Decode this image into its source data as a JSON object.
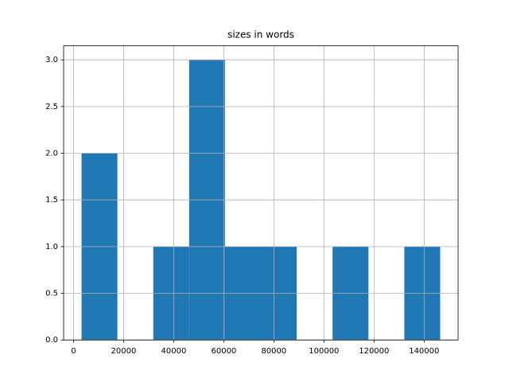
{
  "chart_data": {
    "type": "histogram",
    "title": "sizes in words",
    "bins": [
      3200,
      17520,
      31840,
      46160,
      60480,
      74800,
      89120,
      103440,
      117760,
      132080,
      146400
    ],
    "values": [
      2,
      0,
      1,
      3,
      1,
      1,
      0,
      1,
      0,
      1
    ],
    "color": "#1f77b4",
    "xlim": [
      -3960,
      153560
    ],
    "xticks": [
      0,
      20000,
      40000,
      60000,
      80000,
      100000,
      120000,
      140000
    ],
    "ylim": [
      0,
      3.15
    ],
    "yticks": [
      {
        "value": 0,
        "label": "0.0"
      },
      {
        "value": 0.5,
        "label": "0.5"
      },
      {
        "value": 1,
        "label": "1.0"
      },
      {
        "value": 1.5,
        "label": "1.5"
      },
      {
        "value": 2,
        "label": "2.0"
      },
      {
        "value": 2.5,
        "label": "2.5"
      },
      {
        "value": 3,
        "label": "3.0"
      }
    ],
    "grid": true
  }
}
